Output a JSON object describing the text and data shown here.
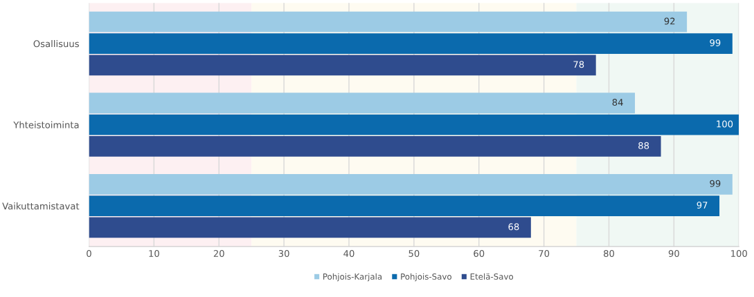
{
  "chart_data": {
    "type": "bar",
    "orientation": "horizontal",
    "categories": [
      "Osallisuus",
      "Yhteistoiminta",
      "Vaikuttamistavat"
    ],
    "series": [
      {
        "name": "Pohjois-Karjala",
        "color": "#9ccbe5",
        "values": [
          92,
          84,
          99
        ]
      },
      {
        "name": "Pohjois-Savo",
        "color": "#0b6aad",
        "values": [
          99,
          100,
          97
        ]
      },
      {
        "name": "Etelä-Savo",
        "color": "#2f4c8e",
        "values": [
          78,
          88,
          68
        ]
      }
    ],
    "xlim": [
      0,
      100
    ],
    "xticks": [
      0,
      10,
      20,
      30,
      40,
      50,
      60,
      70,
      80,
      90,
      100
    ],
    "bands": [
      {
        "axis": "x",
        "from": 0,
        "to": 25,
        "color": "#fdf0f2"
      },
      {
        "axis": "x",
        "from": 25,
        "to": 75,
        "color": "#fefbf1"
      },
      {
        "axis": "x",
        "from": 75,
        "to": 100,
        "color": "#f0f8f4"
      }
    ],
    "grid": "x",
    "data_labels": true,
    "legend": "bottom"
  }
}
